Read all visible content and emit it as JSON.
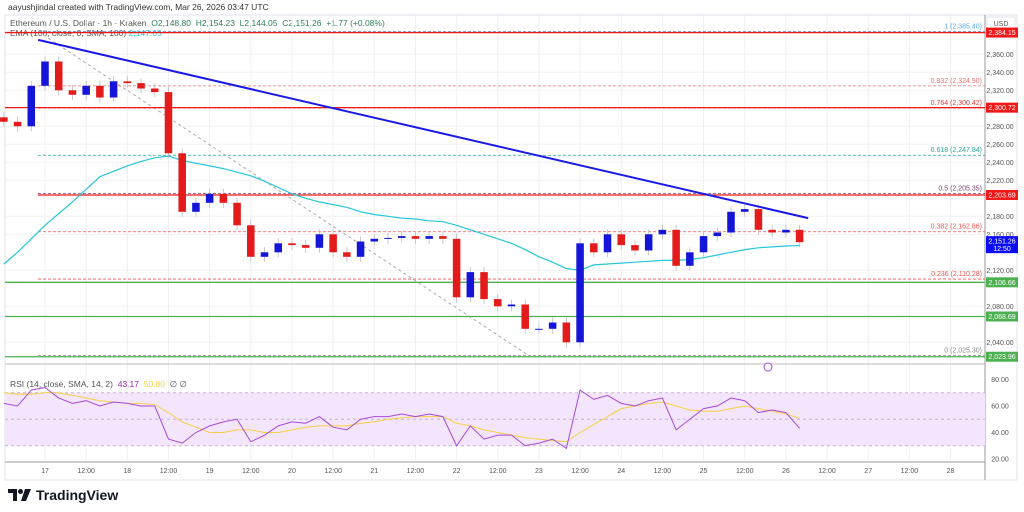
{
  "header": {
    "credit": "aayushjindal created with TradingView.com, Mar 26, 2026 03:47 UTC",
    "symbol": "Ethereum / U.S. Dollar · 1h · Kraken",
    "open": "O2,148.80",
    "high": "H2,154.23",
    "low": "L2,144.05",
    "close": "C2,151.26",
    "change": "+1.77 (+0.08%)",
    "ema_label": "EMA (100, close, 0, SMA, 100)",
    "ema_value": "2,147.65"
  },
  "rsi_legend": {
    "label": "RSI (14, close, SMA, 14, 2)",
    "rsi": "43.17",
    "signal": "50.80",
    "extra": "∅ ∅"
  },
  "currency": "USD",
  "brand": "TradingView",
  "colors": {
    "up": "#1515d8",
    "down": "#e31b1b",
    "ema": "#26c6da",
    "trend": "#1a1ae6",
    "rsi": "#a64ad6",
    "signal": "#f5d142",
    "support": "#4caf50",
    "resistance": "#f21818",
    "last_price": "#0a0aff"
  },
  "chart_data": [
    {
      "type": "candlestick",
      "title": "Ethereum / U.S. Dollar · 1h · Kraken",
      "ylim": [
        2010,
        2400
      ],
      "y_ticks": [
        "2,360.00",
        "2,340.00",
        "2,320.00",
        "2,280.00",
        "2,260.00",
        "2,240.00",
        "2,220.00",
        "2,180.00",
        "2,160.00",
        "2,120.00",
        "2,080.00",
        "2,040.00"
      ],
      "y_tick_values": [
        2360,
        2340,
        2320,
        2280,
        2260,
        2240,
        2220,
        2180,
        2160,
        2120,
        2080,
        2040
      ],
      "x_ticks": [
        "17",
        "12:00",
        "18",
        "12:00",
        "19",
        "12:00",
        "20",
        "12:00",
        "21",
        "12:00",
        "22",
        "12:00",
        "23",
        "12:00",
        "24",
        "12:00",
        "25",
        "12:00",
        "26",
        "12:00",
        "27",
        "12:00",
        "28"
      ],
      "x_tick_times": [
        "2026-03-17T00:00",
        "2026-03-17T12:00",
        "2026-03-18T00:00",
        "2026-03-18T12:00",
        "2026-03-19T00:00",
        "2026-03-19T12:00",
        "2026-03-20T00:00",
        "2026-03-20T12:00",
        "2026-03-21T00:00",
        "2026-03-21T12:00",
        "2026-03-22T00:00",
        "2026-03-22T12:00",
        "2026-03-23T00:00",
        "2026-03-23T12:00",
        "2026-03-24T00:00",
        "2026-03-24T12:00",
        "2026-03-25T00:00",
        "2026-03-25T12:00",
        "2026-03-26T00:00",
        "2026-03-26T12:00",
        "2026-03-27T00:00",
        "2026-03-27T12:00",
        "2026-03-28T00:00"
      ],
      "start_time": "2026-03-16T12:00",
      "interval_hours": 4,
      "close": [
        2285,
        2280,
        2325,
        2352,
        2320,
        2315,
        2325,
        2312,
        2330,
        2328,
        2322,
        2318,
        2250,
        2185,
        2195,
        2205,
        2195,
        2170,
        2135,
        2140,
        2150,
        2148,
        2145,
        2160,
        2140,
        2135,
        2152,
        2155,
        2156,
        2158,
        2155,
        2158,
        2155,
        2090,
        2118,
        2088,
        2080,
        2082,
        2055,
        2055,
        2062,
        2040,
        2150,
        2140,
        2160,
        2148,
        2142,
        2160,
        2165,
        2125,
        2140,
        2158,
        2162,
        2185,
        2188,
        2165,
        2162,
        2165,
        2151.26
      ],
      "ema100": [
        2127,
        2140,
        2155,
        2170,
        2183,
        2196,
        2210,
        2224,
        2230,
        2236,
        2241,
        2245,
        2247,
        2242,
        2239,
        2236,
        2233,
        2229,
        2225,
        2219,
        2212,
        2205,
        2200,
        2196,
        2193,
        2190,
        2185,
        2182,
        2180,
        2178,
        2177,
        2175,
        2174,
        2170,
        2165,
        2160,
        2155,
        2150,
        2143,
        2135,
        2129,
        2122,
        2120,
        2126,
        2127,
        2128,
        2129,
        2130,
        2131,
        2131,
        2132,
        2134,
        2137,
        2140,
        2143,
        2145,
        2146,
        2147,
        2147.65
      ],
      "horizontal_levels": [
        {
          "price": 2384.15,
          "label": "2,384.15",
          "kind": "resistance"
        },
        {
          "price": 2300.72,
          "label": "2,300.72",
          "kind": "resistance"
        },
        {
          "price": 2203.69,
          "label": "2,203.69",
          "kind": "resistance"
        },
        {
          "price": 2106.66,
          "label": "2,106.66",
          "kind": "support"
        },
        {
          "price": 2068.69,
          "label": "2,068.69",
          "kind": "support"
        },
        {
          "price": 2023.96,
          "label": "2,023.96",
          "kind": "support"
        }
      ],
      "last_price": {
        "label": "2,151.26",
        "countdown": "12:50",
        "price": 2151.26
      },
      "fibonacci": [
        {
          "ratio": "1",
          "price": 2385.4,
          "label": "1 (2,385.40)",
          "color": "#5aa9e6"
        },
        {
          "ratio": "0.832",
          "price": 2324.9,
          "label": "0.832 (2,324.90)",
          "color": "#e57373"
        },
        {
          "ratio": "0.764",
          "price": 2300.42,
          "label": "0.764 (2,300.42)",
          "color": "#e53935"
        },
        {
          "ratio": "0.618",
          "price": 2247.84,
          "label": "0.618 (2,247.84)",
          "color": "#26a69a"
        },
        {
          "ratio": "0.5",
          "price": 2205.35,
          "label": "0.5 (2,205.35)",
          "color": "#7b3f6e"
        },
        {
          "ratio": "0.382",
          "price": 2162.86,
          "label": "0.382 (2,162.86)",
          "color": "#ef5350"
        },
        {
          "ratio": "0.236",
          "price": 2110.28,
          "label": "0.236 (2,110.28)",
          "color": "#ef5350"
        },
        {
          "ratio": "0",
          "price": 2025.3,
          "label": "0 (2,025.30)",
          "color": "#888888"
        }
      ],
      "trendline": [
        [
          "2026-03-16T22:00",
          2376
        ],
        [
          "2026-03-26T06:30",
          2178
        ]
      ],
      "fib_anchor_line": [
        [
          "2026-03-16T22:00",
          2385.4
        ],
        [
          "2026-03-22T21:00",
          2025.3
        ]
      ]
    },
    {
      "type": "line",
      "title": "RSI (14, close, SMA, 14, 2)",
      "ylim": [
        15,
        85
      ],
      "y_ticks": [
        "80.00",
        "60.00",
        "40.00",
        "20.00"
      ],
      "y_tick_values": [
        80,
        60,
        40,
        20
      ],
      "band": [
        30,
        70
      ],
      "series": [
        {
          "name": "RSI",
          "values": [
            62,
            60,
            72,
            74,
            66,
            62,
            64,
            60,
            63,
            62,
            60,
            60,
            35,
            32,
            40,
            45,
            48,
            50,
            33,
            38,
            45,
            48,
            47,
            52,
            44,
            42,
            50,
            52,
            52,
            54,
            52,
            54,
            52,
            30,
            45,
            35,
            38,
            38,
            30,
            32,
            35,
            28,
            72,
            65,
            68,
            62,
            60,
            64,
            66,
            42,
            50,
            58,
            60,
            66,
            64,
            55,
            57,
            55,
            43.17
          ]
        },
        {
          "name": "RSI-based MA",
          "values": [
            70,
            69,
            69,
            70,
            70,
            68,
            66,
            64,
            63,
            62,
            62,
            61,
            55,
            48,
            44,
            40,
            40,
            42,
            42,
            40,
            40,
            42,
            44,
            45,
            45,
            45,
            47,
            48,
            50,
            51,
            52,
            52,
            52,
            47,
            45,
            42,
            40,
            38,
            36,
            35,
            34,
            33,
            40,
            46,
            52,
            58,
            60,
            62,
            63,
            60,
            57,
            56,
            56,
            58,
            60,
            58,
            56,
            54,
            50.8
          ]
        }
      ]
    }
  ]
}
